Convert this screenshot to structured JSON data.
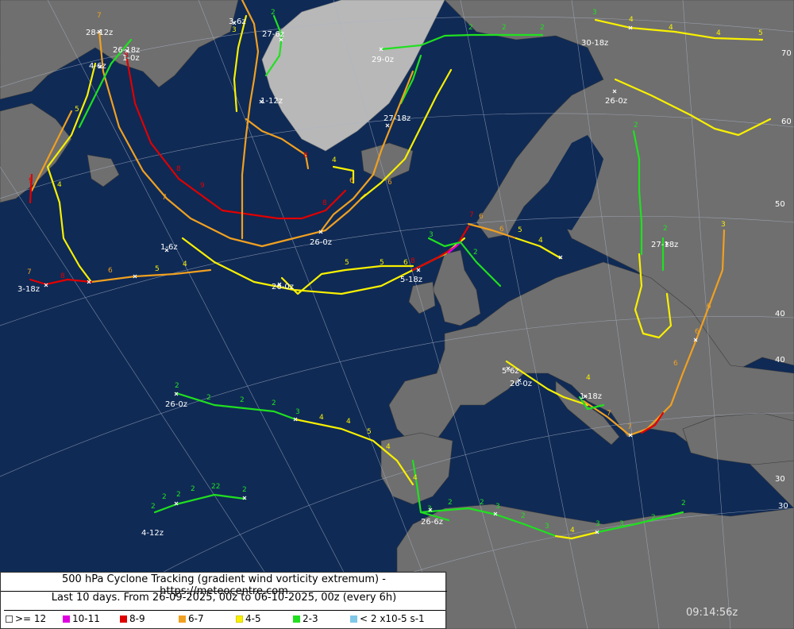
{
  "title": "500 hPa Cyclone Tracking (gradient wind vorticity extremum) - https://meteocentre.com",
  "subtitle": "Last 10 days. From 26-09-2025, 00z to 06-10-2025, 00z (every 6h)",
  "timestamp": "09:14:56z",
  "legend": [
    {
      "label": ">= 12",
      "color": "#ffffff"
    },
    {
      "label": "10-11",
      "color": "#e000e0"
    },
    {
      "label": "8-9",
      "color": "#e00000"
    },
    {
      "label": "6-7",
      "color": "#f0a020"
    },
    {
      "label": "4-5",
      "color": "#f8f000"
    },
    {
      "label": "2-3",
      "color": "#20e020"
    },
    {
      "label": "< 2 x10-5 s-1",
      "color": "#80c8e8"
    }
  ],
  "lat_labels": [
    "70",
    "60",
    "50",
    "40",
    "40",
    "30",
    "30"
  ],
  "track_labels": [
    "28-12z",
    "26-18z",
    "1-0z",
    "4-6z",
    "3-6z",
    "27-6z",
    "1-12z",
    "29-0z",
    "27-18z",
    "30-18z",
    "26-0z",
    "26-0z",
    "1-6z",
    "3-18z",
    "26-0z",
    "5-18z",
    "27-18z",
    "5-6z",
    "26-0z",
    "1-18z",
    "26-0z",
    "26-6z",
    "4-12z"
  ]
}
